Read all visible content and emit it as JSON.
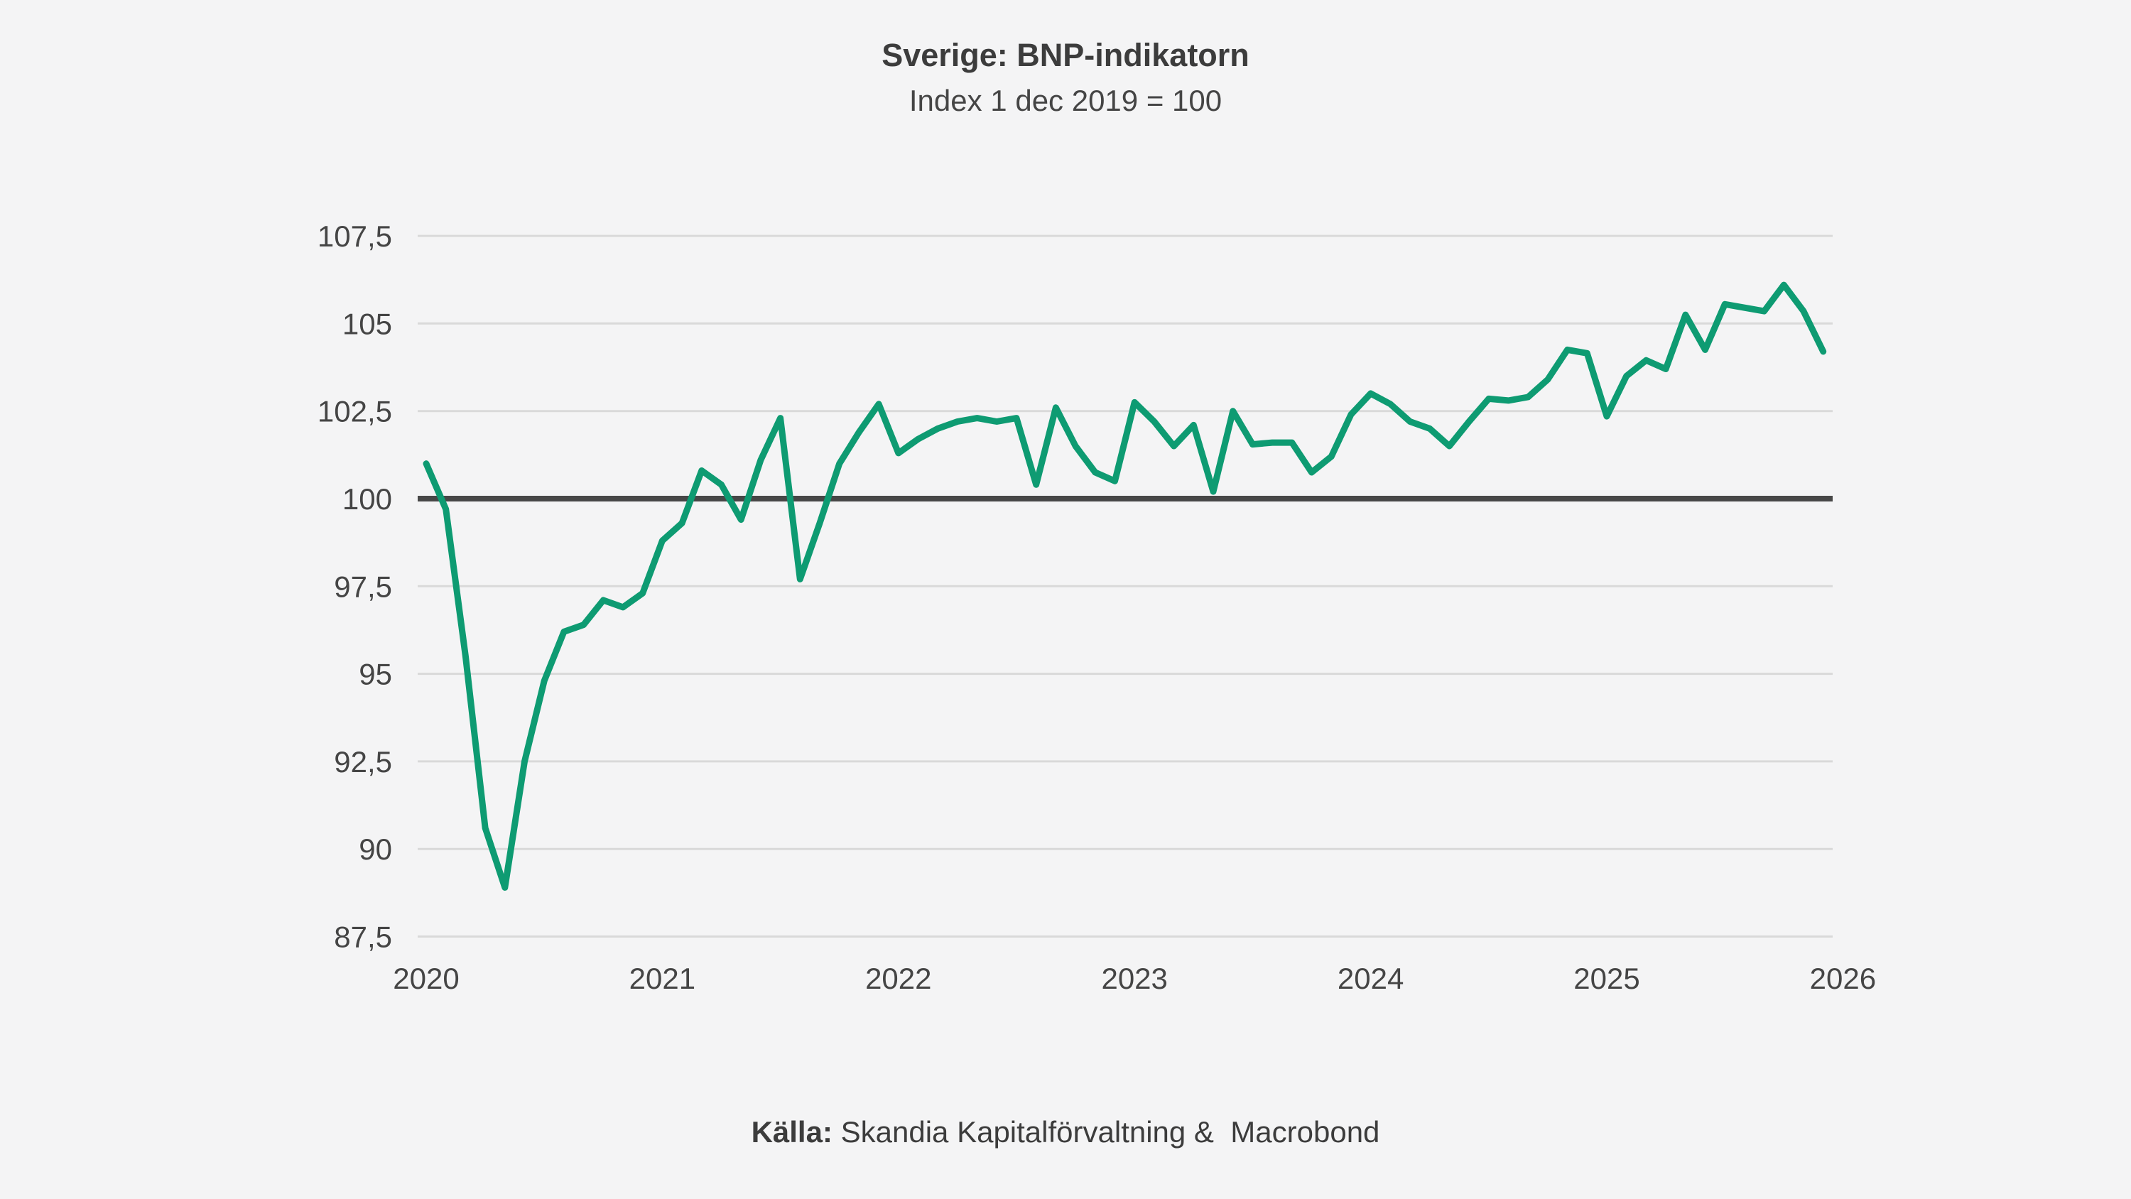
{
  "header": {
    "title": "Sverige: BNP-indikatorn",
    "subtitle": "Index 1 dec 2019 = 100"
  },
  "footer": {
    "source_label": "Källa:",
    "source_text": " Skandia Kapitalförvaltning &  Macrobond"
  },
  "colors": {
    "background": "#f4f4f5",
    "line": "#0e9b72",
    "baseline": "#474747",
    "gridline": "#d9d9d9",
    "text": "#3c3c3c"
  },
  "chart_data": {
    "type": "line",
    "title": "Sverige: BNP-indikatorn",
    "subtitle": "Index 1 dec 2019 = 100",
    "source": "Källa: Skandia Kapitalförvaltning & Macrobond",
    "xlabel": "",
    "ylabel": "",
    "grid": "horizontal",
    "legend": "none",
    "baseline": 100,
    "ylim": [
      86.3,
      108.8
    ],
    "y_ticks": [
      87.5,
      90,
      92.5,
      95,
      97.5,
      100,
      102.5,
      105,
      107.5
    ],
    "y_tick_labels": [
      "87,5",
      "90",
      "92,5",
      "95",
      "97,5",
      "100",
      "102,5",
      "105",
      "107,5"
    ],
    "x_tick_labels": [
      "2020",
      "2021",
      "2022",
      "2023",
      "2024",
      "2025",
      "2026"
    ],
    "series": [
      {
        "name": "BNP-indikatorn",
        "frequency": "monthly",
        "start": "2020-01",
        "end": "2025-12",
        "values": [
          101.0,
          99.7,
          95.5,
          90.6,
          88.9,
          92.5,
          94.8,
          96.2,
          96.4,
          97.1,
          96.9,
          97.3,
          98.8,
          99.3,
          100.8,
          100.4,
          99.4,
          101.1,
          102.3,
          97.7,
          99.3,
          101.0,
          101.9,
          102.7,
          101.3,
          101.7,
          102.0,
          102.2,
          102.3,
          102.2,
          102.3,
          100.4,
          102.6,
          101.5,
          100.75,
          100.5,
          102.75,
          102.2,
          101.5,
          102.1,
          100.2,
          102.5,
          101.55,
          101.6,
          101.6,
          100.75,
          101.2,
          102.4,
          103.0,
          102.7,
          102.2,
          102.0,
          101.5,
          102.2,
          102.85,
          102.8,
          102.9,
          103.4,
          104.25,
          104.15,
          102.35,
          103.5,
          103.95,
          103.7,
          105.25,
          104.25,
          105.55,
          105.45,
          105.35,
          106.1,
          105.35,
          104.2
        ]
      }
    ]
  }
}
